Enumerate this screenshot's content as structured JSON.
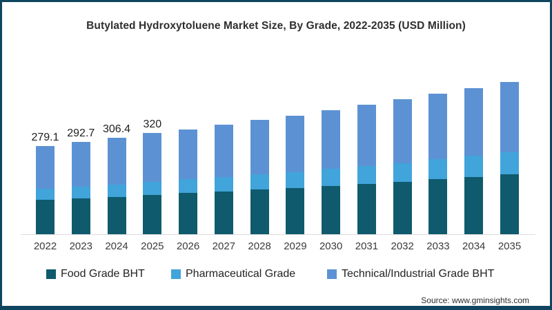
{
  "source": "Source: www.gminsights.com",
  "colors": {
    "food": "#0F5A6D",
    "pharma": "#41A4DA",
    "tech": "#5C92D3",
    "frame_border": "#0F455E",
    "axis_line": "#DCDCDC",
    "title_text": "#2E2E2E",
    "label_text": "#1F1F1F"
  },
  "chart_data": {
    "type": "bar",
    "stacked": true,
    "title": "Butylated Hydroxytoluene Market Size, By Grade, 2022-2035 (USD Million)",
    "unit": "USD Million",
    "xlabel": "",
    "ylabel": "",
    "ylim": [
      0,
      500
    ],
    "grid": false,
    "legend_position": "bottom",
    "categories": [
      "2022",
      "2023",
      "2024",
      "2025",
      "2026",
      "2027",
      "2028",
      "2029",
      "2030",
      "2031",
      "2032",
      "2033",
      "2034",
      "2035"
    ],
    "series": [
      {
        "name": "Food Grade BHT",
        "color_key": "food",
        "values": [
          110.0,
          113.0,
          118.0,
          124.5,
          130.0,
          135.0,
          141.0,
          146.0,
          153.0,
          159.0,
          166.0,
          174.0,
          182.0,
          190.0
        ]
      },
      {
        "name": "Pharmaceutical Grade",
        "color_key": "pharma",
        "values": [
          35.0,
          37.0,
          39.0,
          41.5,
          43.7,
          45.9,
          48.0,
          50.0,
          54.6,
          56.8,
          59.0,
          64.0,
          67.0,
          70.0
        ]
      },
      {
        "name": "Technical/Industrial Grade BHT",
        "color_key": "tech",
        "values": [
          134.1,
          142.7,
          149.4,
          154.0,
          159.1,
          167.1,
          172.5,
          179.0,
          184.4,
          194.2,
          203.5,
          207.0,
          214.5,
          223.0
        ]
      }
    ],
    "totals": [
      279.1,
      292.7,
      306.4,
      320.0,
      332.8,
      348.0,
      361.5,
      375.0,
      392.0,
      410.0,
      428.5,
      445.0,
      463.5,
      483.0
    ],
    "visible_total_labels": [
      "279.1",
      "292.7",
      "306.4",
      "320"
    ]
  }
}
